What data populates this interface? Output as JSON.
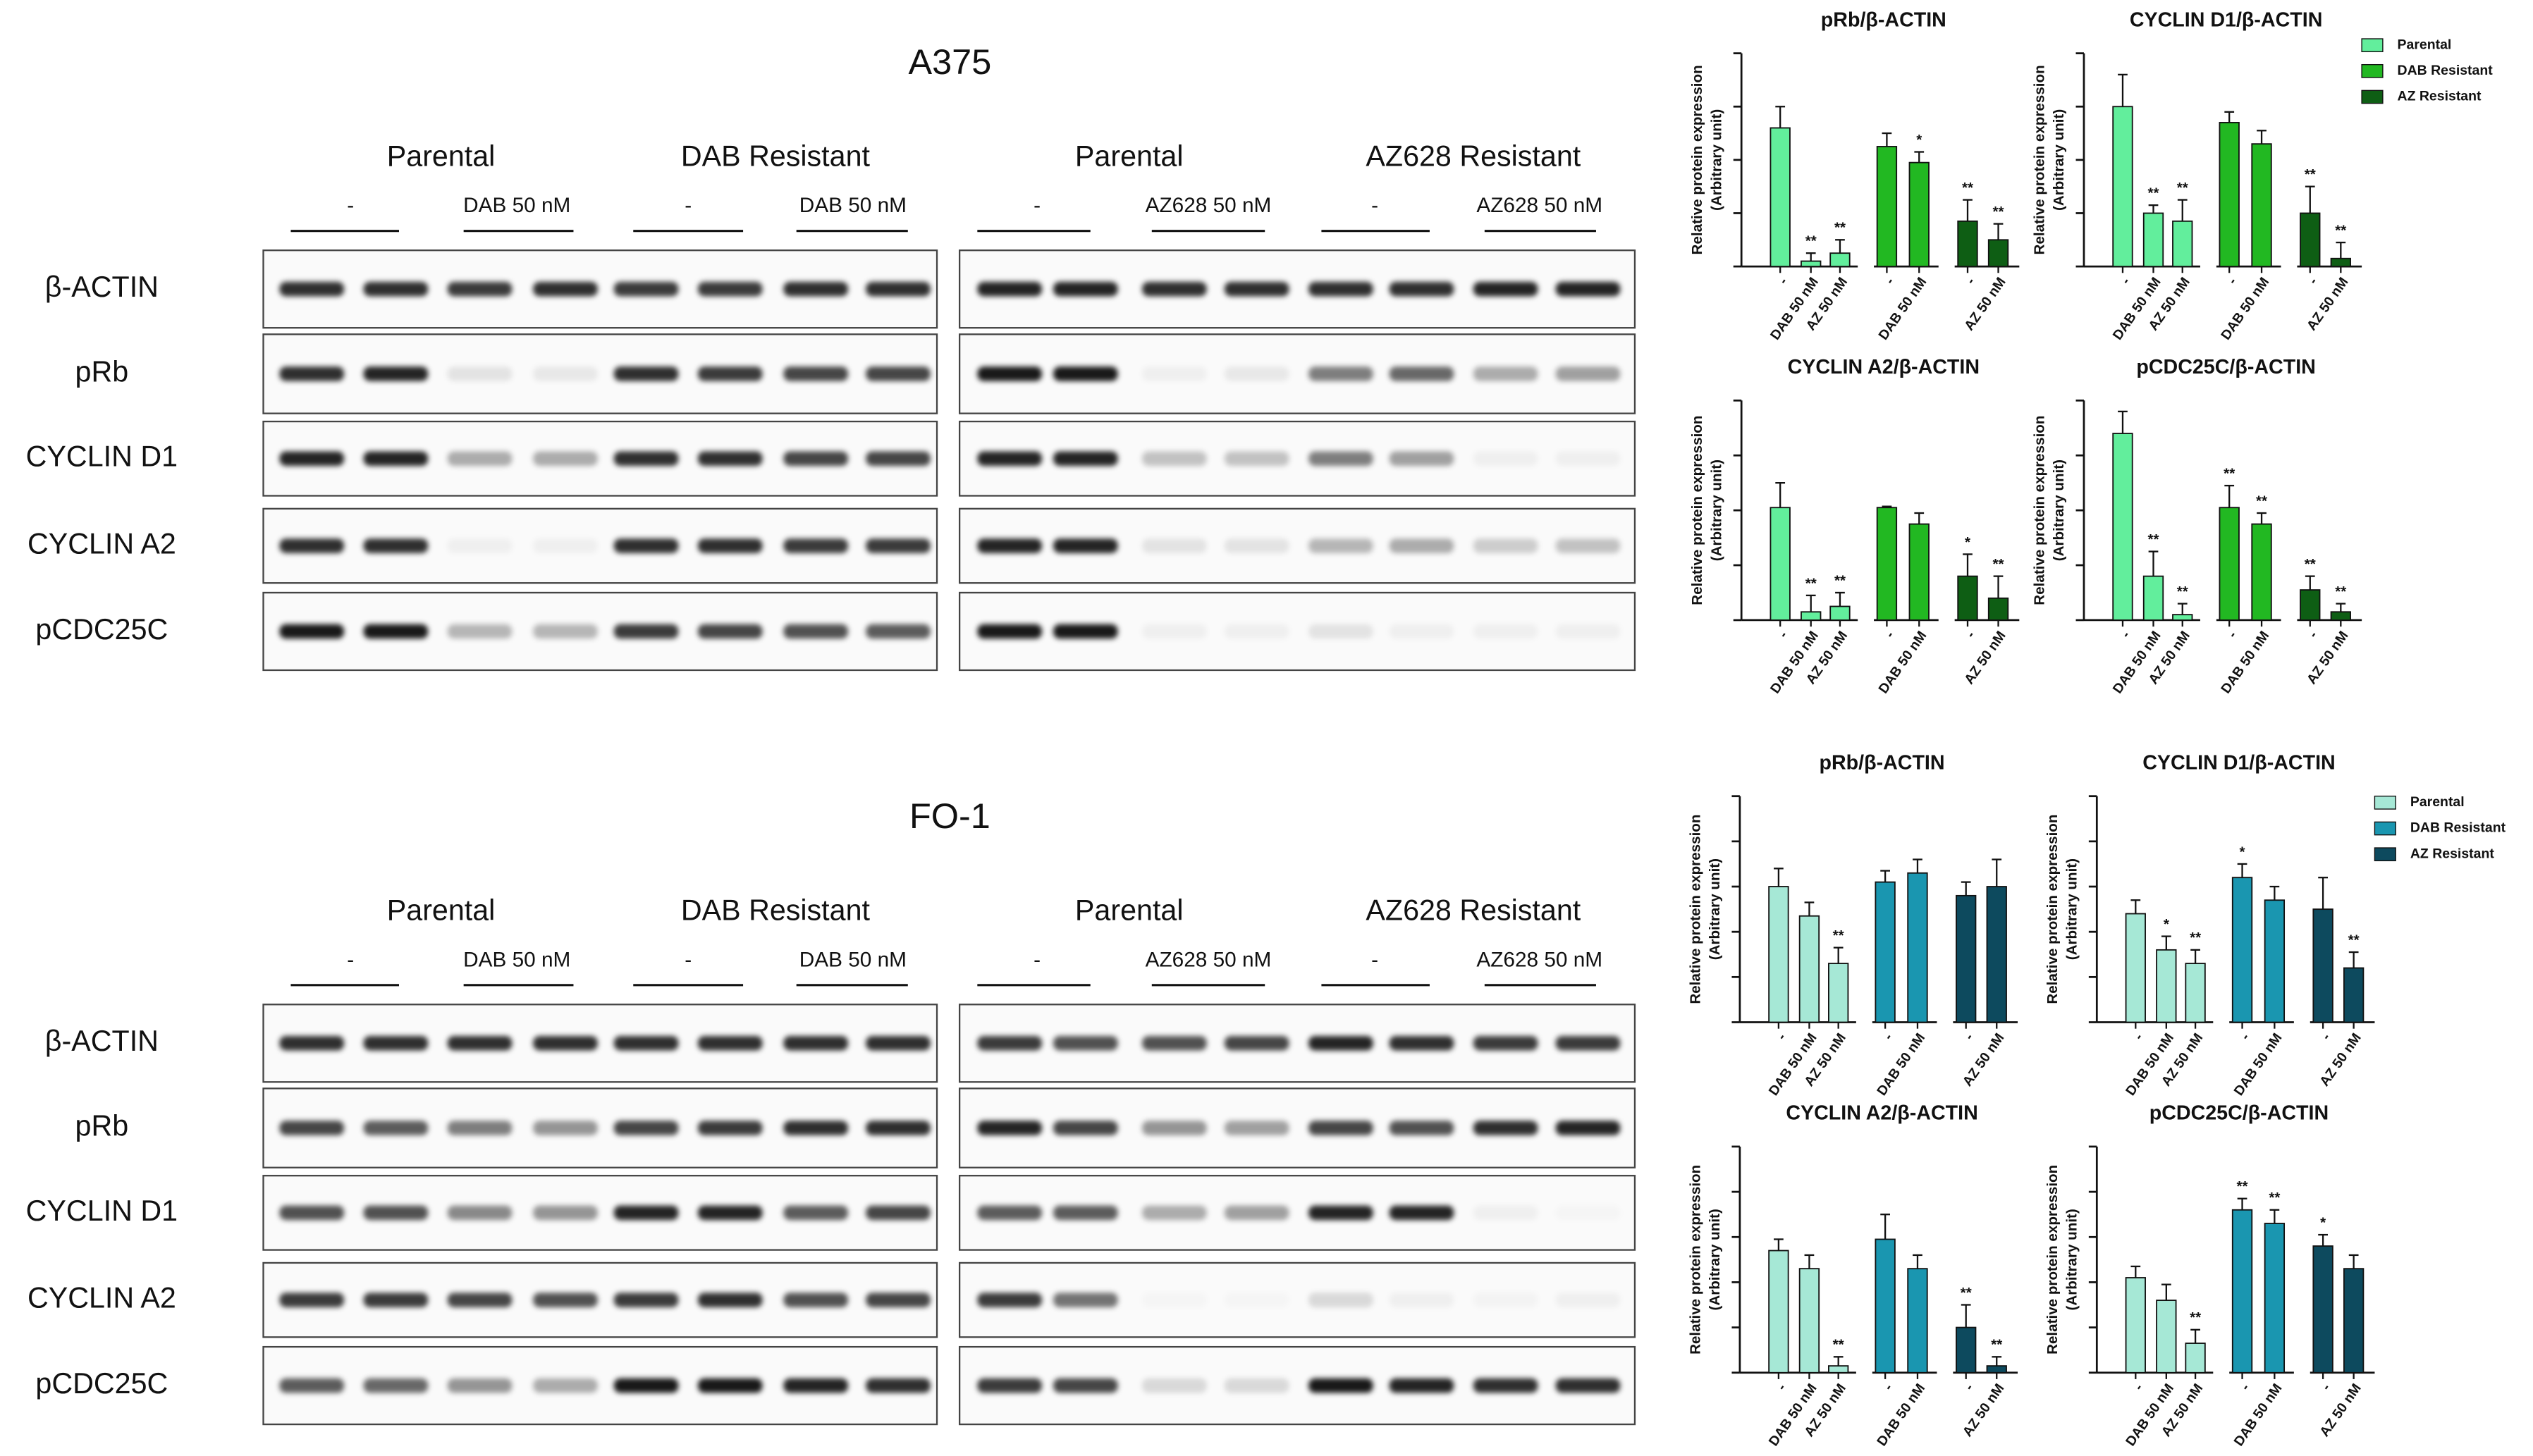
{
  "sections": [
    {
      "title": "A375",
      "rows": [
        "β-ACTIN",
        "pRb",
        "CYCLIN D1",
        "CYCLIN A2",
        "pCDC25C"
      ],
      "panels": [
        {
          "headers": [
            "Parental",
            "DAB Resistant"
          ],
          "lanes": [
            "-",
            "DAB 50 nM",
            "-",
            "DAB 50 nM"
          ]
        },
        {
          "headers": [
            "Parental",
            "AZ628 Resistant"
          ],
          "lanes": [
            "-",
            "AZ628 50 nM",
            "-",
            "AZ628 50 nM"
          ]
        }
      ]
    },
    {
      "title": "FO-1",
      "rows": [
        "β-ACTIN",
        "pRb",
        "CYCLIN D1",
        "CYCLIN A2",
        "pCDC25C"
      ],
      "panels": [
        {
          "headers": [
            "Parental",
            "DAB Resistant"
          ],
          "lanes": [
            "-",
            "DAB 50 nM",
            "-",
            "DAB 50 nM"
          ]
        },
        {
          "headers": [
            "Parental",
            "AZ628 Resistant"
          ],
          "lanes": [
            "-",
            "AZ628 50 nM",
            "-",
            "AZ628 50 nM"
          ]
        }
      ]
    }
  ],
  "chart_data": [
    {
      "type": "bar",
      "title": "pRb/β-ACTIN",
      "y_label": [
        "Relative protein expression",
        "(Arbitrary unit)"
      ],
      "categories": [
        "-",
        "DAB 50 nM",
        "AZ 50 nM",
        "-",
        "DAB 50 nM",
        "-",
        "AZ 50 nM"
      ],
      "ylim": [
        0,
        4
      ],
      "yticks": [
        0,
        1,
        2,
        3,
        4
      ],
      "series": [
        {
          "color": "#62ee9c",
          "values": [
            2.6,
            0.1,
            0.25,
            null,
            null,
            null,
            null
          ],
          "errors": [
            0.4,
            0.15,
            0.25,
            null,
            null,
            null,
            null
          ],
          "annotations": [
            null,
            "**",
            "**",
            null,
            null,
            null,
            null
          ]
        },
        {
          "color": "#22b822",
          "values": [
            null,
            null,
            null,
            2.25,
            1.95,
            null,
            null
          ],
          "errors": [
            null,
            null,
            null,
            0.25,
            0.2,
            null,
            null
          ],
          "annotations": [
            null,
            null,
            null,
            null,
            "*",
            null,
            null
          ]
        },
        {
          "color": "#0e5e14",
          "values": [
            null,
            null,
            null,
            null,
            null,
            0.85,
            0.5
          ],
          "errors": [
            null,
            null,
            null,
            null,
            null,
            0.4,
            0.3
          ],
          "annotations": [
            null,
            null,
            null,
            null,
            null,
            "**",
            "**"
          ]
        }
      ]
    },
    {
      "type": "bar",
      "title": "CYCLIN D1/β-ACTIN",
      "y_label": [
        "Relative protein expression",
        "(Arbitrary unit)"
      ],
      "categories": [
        "-",
        "DAB 50 nM",
        "AZ 50 nM",
        "-",
        "DAB 50 nM",
        "-",
        "AZ 50 nM"
      ],
      "ylim": [
        0,
        4
      ],
      "yticks": [
        0,
        1,
        2,
        3,
        4
      ],
      "legend": "right",
      "series": [
        {
          "name": "Parental",
          "color": "#62ee9c",
          "values": [
            3.0,
            1.0,
            0.85,
            null,
            null,
            null,
            null
          ],
          "errors": [
            0.6,
            0.15,
            0.4,
            null,
            null,
            null,
            null
          ],
          "annotations": [
            null,
            "**",
            "**",
            null,
            null,
            null,
            null
          ]
        },
        {
          "name": "DAB Resistant",
          "color": "#22b822",
          "values": [
            null,
            null,
            null,
            2.7,
            2.3,
            null,
            null
          ],
          "errors": [
            null,
            null,
            null,
            0.2,
            0.25,
            null,
            null
          ],
          "annotations": [
            null,
            null,
            null,
            null,
            null,
            null,
            null
          ]
        },
        {
          "name": "AZ Resistant",
          "color": "#0e5e14",
          "values": [
            null,
            null,
            null,
            null,
            null,
            1.0,
            0.15
          ],
          "errors": [
            null,
            null,
            null,
            null,
            null,
            0.5,
            0.3
          ],
          "annotations": [
            null,
            null,
            null,
            null,
            null,
            "**",
            "**"
          ]
        }
      ]
    },
    {
      "type": "bar",
      "title": "CYCLIN A2/β-ACTIN",
      "y_label": [
        "Relative protein expression",
        "(Arbitrary unit)"
      ],
      "categories": [
        "-",
        "DAB 50 nM",
        "AZ 50 nM",
        "-",
        "DAB 50 nM",
        "-",
        "AZ 50 nM"
      ],
      "ylim": [
        0,
        4
      ],
      "yticks": [
        0,
        1,
        2,
        3,
        4
      ],
      "series": [
        {
          "color": "#62ee9c",
          "values": [
            2.05,
            0.15,
            0.25,
            null,
            null,
            null,
            null
          ],
          "errors": [
            0.45,
            0.3,
            0.25,
            null,
            null,
            null,
            null
          ],
          "annotations": [
            null,
            "**",
            "**",
            null,
            null,
            null,
            null
          ]
        },
        {
          "color": "#22b822",
          "values": [
            null,
            null,
            null,
            2.05,
            1.75,
            null,
            null
          ],
          "errors": [
            null,
            null,
            null,
            0.02,
            0.2,
            null,
            null
          ],
          "annotations": [
            null,
            null,
            null,
            null,
            null,
            null,
            null
          ]
        },
        {
          "color": "#0e5e14",
          "values": [
            null,
            null,
            null,
            null,
            null,
            0.8,
            0.4
          ],
          "errors": [
            null,
            null,
            null,
            null,
            null,
            0.4,
            0.4
          ],
          "annotations": [
            null,
            null,
            null,
            null,
            null,
            "*",
            "**"
          ]
        }
      ]
    },
    {
      "type": "bar",
      "title": "pCDC25C/β-ACTIN",
      "y_label": [
        "Relative protein expression",
        "(Arbitrary unit)"
      ],
      "categories": [
        "-",
        "DAB 50 nM",
        "AZ 50 nM",
        "-",
        "DAB 50 nM",
        "-",
        "AZ 50 nM"
      ],
      "ylim": [
        0,
        4
      ],
      "yticks": [
        0,
        1,
        2,
        3,
        4
      ],
      "series": [
        {
          "color": "#62ee9c",
          "values": [
            3.4,
            0.8,
            0.1,
            null,
            null,
            null,
            null
          ],
          "errors": [
            0.4,
            0.45,
            0.2,
            null,
            null,
            null,
            null
          ],
          "annotations": [
            null,
            "**",
            "**",
            null,
            null,
            null,
            null
          ]
        },
        {
          "color": "#22b822",
          "values": [
            null,
            null,
            null,
            2.05,
            1.75,
            null,
            null
          ],
          "errors": [
            null,
            null,
            null,
            0.4,
            0.2,
            null,
            null
          ],
          "annotations": [
            null,
            null,
            null,
            "**",
            "**",
            null,
            null
          ]
        },
        {
          "color": "#0e5e14",
          "values": [
            null,
            null,
            null,
            null,
            null,
            0.55,
            0.15
          ],
          "errors": [
            null,
            null,
            null,
            null,
            null,
            0.25,
            0.15
          ],
          "annotations": [
            null,
            null,
            null,
            null,
            null,
            "**",
            "**"
          ]
        }
      ]
    },
    {
      "type": "bar",
      "title": "pRb/β-ACTIN",
      "y_label": [
        "Relative protein expression",
        "(Arbitrary unit)"
      ],
      "categories": [
        "-",
        "DAB 50 nM",
        "AZ 50 nM",
        "-",
        "DAB 50 nM",
        "-",
        "AZ 50 nM"
      ],
      "ylim": [
        0,
        5
      ],
      "yticks": [
        0,
        1,
        2,
        3,
        4,
        5
      ],
      "series": [
        {
          "color": "#a6e8d6",
          "values": [
            3.0,
            2.35,
            1.3,
            null,
            null,
            null,
            null
          ],
          "errors": [
            0.4,
            0.3,
            0.35,
            null,
            null,
            null,
            null
          ],
          "annotations": [
            null,
            null,
            "**",
            null,
            null,
            null,
            null
          ]
        },
        {
          "color": "#1a96b0",
          "values": [
            null,
            null,
            null,
            3.1,
            3.3,
            null,
            null
          ],
          "errors": [
            null,
            null,
            null,
            0.25,
            0.3,
            null,
            null
          ],
          "annotations": [
            null,
            null,
            null,
            null,
            null,
            null,
            null
          ]
        },
        {
          "color": "#0d4a5e",
          "values": [
            null,
            null,
            null,
            null,
            null,
            2.8,
            3.0
          ],
          "errors": [
            null,
            null,
            null,
            null,
            null,
            0.3,
            0.6
          ],
          "annotations": [
            null,
            null,
            null,
            null,
            null,
            null,
            null
          ]
        }
      ]
    },
    {
      "type": "bar",
      "title": "CYCLIN D1/β-ACTIN",
      "y_label": [
        "Relative protein expression",
        "(Arbitrary unit)"
      ],
      "categories": [
        "-",
        "DAB 50 nM",
        "AZ 50 nM",
        "-",
        "DAB 50 nM",
        "-",
        "AZ 50 nM"
      ],
      "ylim": [
        0,
        5
      ],
      "yticks": [
        0,
        1,
        2,
        3,
        4,
        5
      ],
      "legend": "right",
      "series": [
        {
          "name": "Parental",
          "color": "#a6e8d6",
          "values": [
            2.4,
            1.6,
            1.3,
            null,
            null,
            null,
            null
          ],
          "errors": [
            0.3,
            0.3,
            0.3,
            null,
            null,
            null,
            null
          ],
          "annotations": [
            null,
            "*",
            "**",
            null,
            null,
            null,
            null
          ]
        },
        {
          "name": "DAB Resistant",
          "color": "#1a96b0",
          "values": [
            null,
            null,
            null,
            3.2,
            2.7,
            null,
            null
          ],
          "errors": [
            null,
            null,
            null,
            0.3,
            0.3,
            null,
            null
          ],
          "annotations": [
            null,
            null,
            null,
            "*",
            null,
            null,
            null
          ]
        },
        {
          "name": "AZ Resistant",
          "color": "#0d4a5e",
          "values": [
            null,
            null,
            null,
            null,
            null,
            2.5,
            1.2
          ],
          "errors": [
            null,
            null,
            null,
            null,
            null,
            0.7,
            0.35
          ],
          "annotations": [
            null,
            null,
            null,
            null,
            null,
            null,
            "**"
          ]
        }
      ]
    },
    {
      "type": "bar",
      "title": "CYCLIN A2/β-ACTIN",
      "y_label": [
        "Relative protein expression",
        "(Arbitrary unit)"
      ],
      "categories": [
        "-",
        "DAB 50 nM",
        "AZ 50 nM",
        "-",
        "DAB 50 nM",
        "-",
        "AZ 50 nM"
      ],
      "ylim": [
        0,
        5
      ],
      "yticks": [
        0,
        1,
        2,
        3,
        4,
        5
      ],
      "series": [
        {
          "color": "#a6e8d6",
          "values": [
            2.7,
            2.3,
            0.15,
            null,
            null,
            null,
            null
          ],
          "errors": [
            0.25,
            0.3,
            0.2,
            null,
            null,
            null,
            null
          ],
          "annotations": [
            null,
            null,
            "**",
            null,
            null,
            null,
            null
          ]
        },
        {
          "color": "#1a96b0",
          "values": [
            null,
            null,
            null,
            2.95,
            2.3,
            null,
            null
          ],
          "errors": [
            null,
            null,
            null,
            0.55,
            0.3,
            null,
            null
          ],
          "annotations": [
            null,
            null,
            null,
            null,
            null,
            null,
            null
          ]
        },
        {
          "color": "#0d4a5e",
          "values": [
            null,
            null,
            null,
            null,
            null,
            1.0,
            0.15
          ],
          "errors": [
            null,
            null,
            null,
            null,
            null,
            0.5,
            0.2
          ],
          "annotations": [
            null,
            null,
            null,
            null,
            null,
            "**",
            "**"
          ]
        }
      ]
    },
    {
      "type": "bar",
      "title": "pCDC25C/β-ACTIN",
      "y_label": [
        "Relative protein expression",
        "(Arbitrary unit)"
      ],
      "categories": [
        "-",
        "DAB 50 nM",
        "AZ 50 nM",
        "-",
        "DAB 50 nM",
        "-",
        "AZ 50 nM"
      ],
      "ylim": [
        0,
        5
      ],
      "yticks": [
        0,
        1,
        2,
        3,
        4,
        5
      ],
      "series": [
        {
          "color": "#a6e8d6",
          "values": [
            2.1,
            1.6,
            0.65,
            null,
            null,
            null,
            null
          ],
          "errors": [
            0.25,
            0.35,
            0.3,
            null,
            null,
            null,
            null
          ],
          "annotations": [
            null,
            null,
            "**",
            null,
            null,
            null,
            null
          ]
        },
        {
          "color": "#1a96b0",
          "values": [
            null,
            null,
            null,
            3.6,
            3.3,
            null,
            null
          ],
          "errors": [
            null,
            null,
            null,
            0.25,
            0.3,
            null,
            null
          ],
          "annotations": [
            null,
            null,
            null,
            "**",
            "**",
            null,
            null
          ]
        },
        {
          "color": "#0d4a5e",
          "values": [
            null,
            null,
            null,
            null,
            null,
            2.8,
            2.3
          ],
          "errors": [
            null,
            null,
            null,
            null,
            null,
            0.25,
            0.3
          ],
          "annotations": [
            null,
            null,
            null,
            null,
            null,
            "*",
            null
          ]
        }
      ]
    }
  ]
}
